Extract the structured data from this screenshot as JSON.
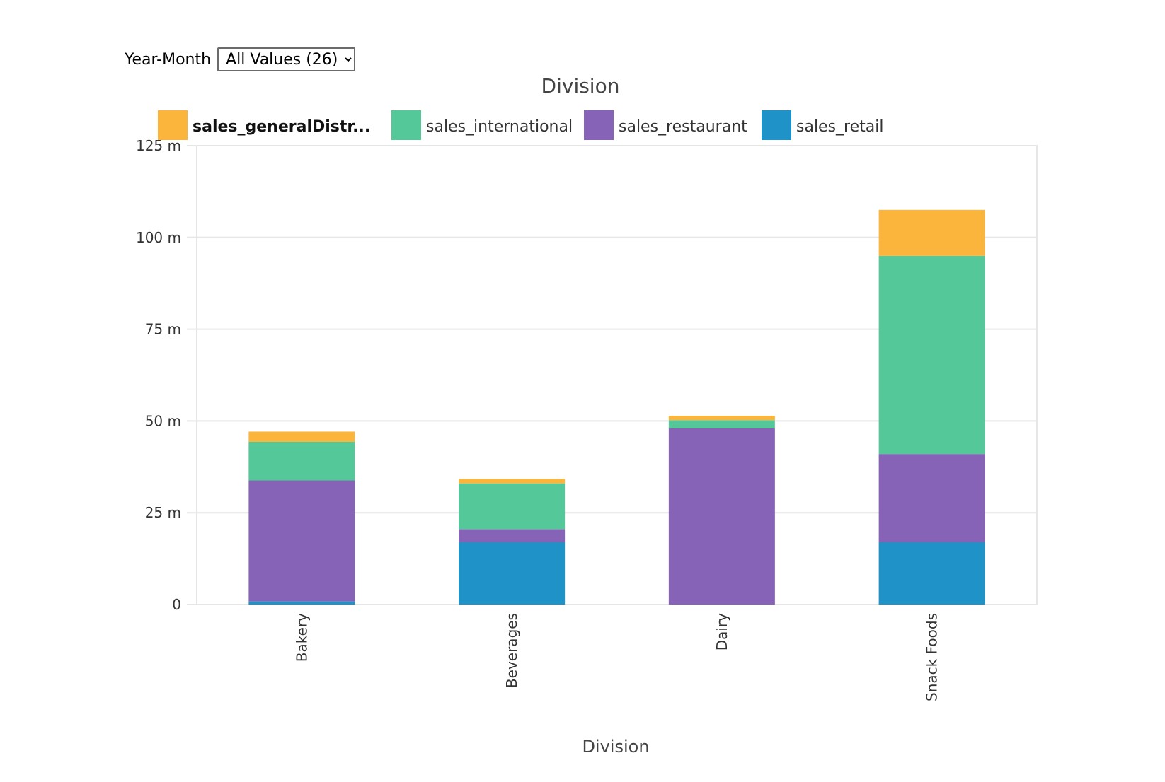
{
  "filter": {
    "label": "Year-Month",
    "options": [
      "All Values (26)"
    ],
    "selected": "All Values (26)"
  },
  "chart_data": {
    "type": "bar",
    "stacked": true,
    "title": "Division",
    "xlabel": "Division",
    "ylabel": "",
    "ylim": [
      0,
      125
    ],
    "y_tick_values": [
      0,
      25,
      50,
      75,
      100,
      125
    ],
    "y_tick_labels": [
      "0",
      "25 m",
      "50 m",
      "75 m",
      "100 m",
      "125 m"
    ],
    "grid": true,
    "legend_position": "top",
    "categories": [
      "Bakery",
      "Beverages",
      "Dairy",
      "Snack Foods"
    ],
    "series": [
      {
        "name": "sales_retail",
        "color": "#1f93c8",
        "values": [
          0.8,
          17,
          0,
          17
        ]
      },
      {
        "name": "sales_restaurant",
        "color": "#8763b8",
        "values": [
          33,
          3.5,
          48,
          24
        ]
      },
      {
        "name": "sales_international",
        "color": "#55c89a",
        "values": [
          10.5,
          12.5,
          2.2,
          54
        ]
      },
      {
        "name": "sales_generalDistr...",
        "color": "#fbb53c",
        "values": [
          2.8,
          1.2,
          1.2,
          12.5
        ]
      }
    ],
    "legend_order": [
      "sales_generalDistr...",
      "sales_international",
      "sales_restaurant",
      "sales_retail"
    ],
    "legend_bold": [
      "sales_generalDistr..."
    ]
  }
}
